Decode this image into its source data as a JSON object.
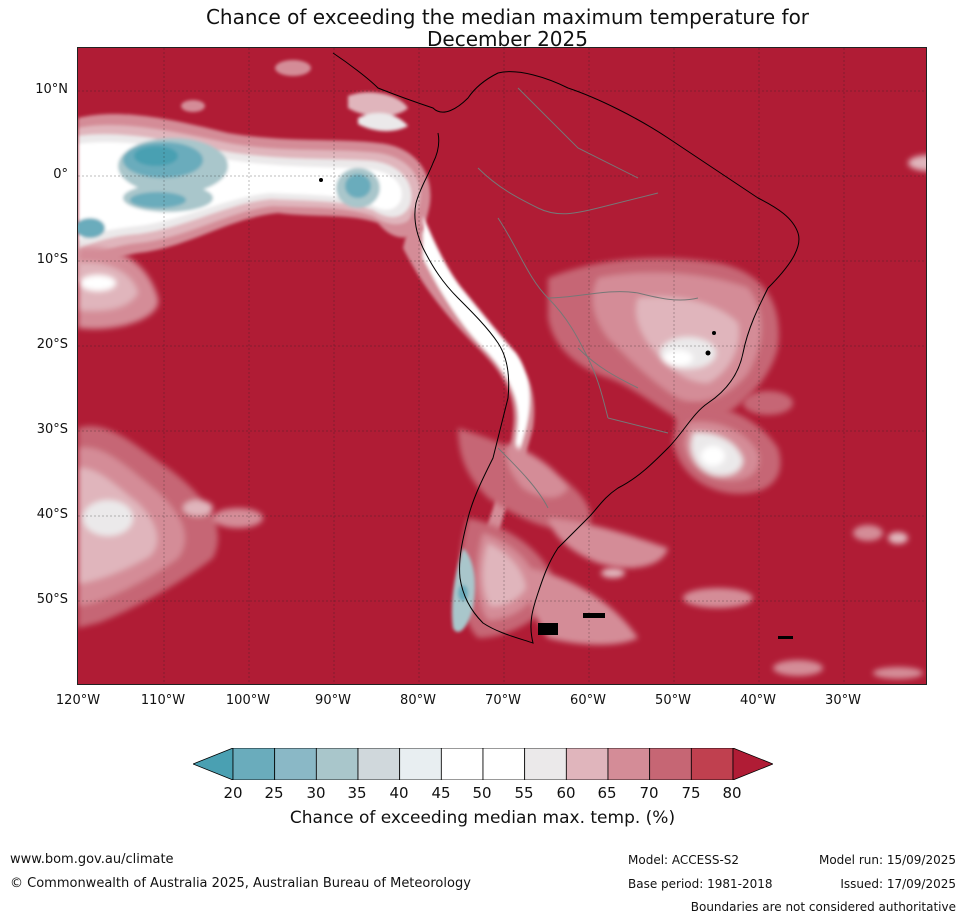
{
  "title": {
    "line1": "Chance of exceeding the median maximum temperature for",
    "line2": "December 2025"
  },
  "map": {
    "lat_labels": [
      "10°N",
      "0°",
      "10°S",
      "20°S",
      "30°S",
      "40°S",
      "50°S"
    ],
    "lon_labels": [
      "120°W",
      "110°W",
      "100°W",
      "90°W",
      "80°W",
      "70°W",
      "60°W",
      "50°W",
      "40°W",
      "30°W"
    ],
    "ocean_color": "#b01c35"
  },
  "colorbar": {
    "ticks": [
      "20",
      "25",
      "30",
      "35",
      "40",
      "45",
      "50",
      "55",
      "60",
      "65",
      "70",
      "75",
      "80"
    ],
    "colors": [
      "#4aa0b2",
      "#6aacbc",
      "#8ab8c6",
      "#a9c6cb",
      "#d0d8dc",
      "#e8eef1",
      "#ffffff",
      "#ffffff",
      "#ebe9ea",
      "#e0b5bc",
      "#d48c97",
      "#c66674",
      "#c0404f",
      "#b01c35"
    ],
    "label": "Chance of exceeding median max. temp. (%)"
  },
  "footer": {
    "url": "www.bom.gov.au/climate",
    "copyright": "© Commonwealth of Australia 2025, Australian Bureau of Meteorology",
    "model": "Model: ACCESS-S2",
    "base_period": "Base period: 1981-2018",
    "model_run": "Model run: 15/09/2025",
    "issued": "Issued: 17/09/2025",
    "boundaries": "Boundaries are not considered authoritative"
  }
}
